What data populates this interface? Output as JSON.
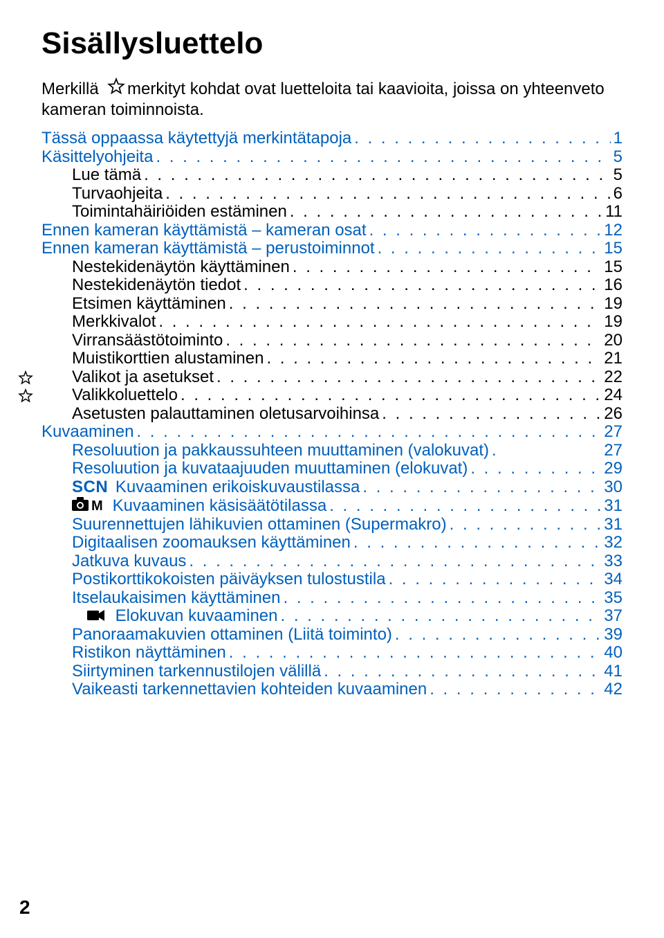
{
  "title": "Sisällysluettelo",
  "intro_before_star": "Merkillä",
  "intro_after_star": "merkityt kohdat ovat luetteloita tai kaavioita, joissa on yhteenveto kameran toiminnoista.",
  "page_corner": "2",
  "colors": {
    "link_blue": "#0060bc",
    "text_black": "#000000"
  },
  "toc": [
    {
      "label": "Tässä oppaassa käytettyjä merkintätapoja",
      "page": "1",
      "level": 0,
      "color": "blue"
    },
    {
      "label": "Käsittelyohjeita",
      "page": "5",
      "level": 0,
      "color": "blue"
    },
    {
      "label": "Lue tämä",
      "page": "5",
      "level": 1,
      "color": "black"
    },
    {
      "label": "Turvaohjeita",
      "page": "6",
      "level": 1,
      "color": "black"
    },
    {
      "label": "Toimintahäiriöiden estäminen",
      "page": "11",
      "level": 1,
      "color": "black"
    },
    {
      "label": "Ennen kameran käyttämistä – kameran osat",
      "page": "12",
      "level": 0,
      "color": "blue"
    },
    {
      "label": "Ennen kameran käyttämistä – perustoiminnot",
      "page": "15",
      "level": 0,
      "color": "blue"
    },
    {
      "label": "Nestekidenäytön käyttäminen",
      "page": "15",
      "level": 1,
      "color": "black"
    },
    {
      "label": "Nestekidenäytön tiedot",
      "page": "16",
      "level": 1,
      "color": "black"
    },
    {
      "label": "Etsimen käyttäminen",
      "page": "19",
      "level": 1,
      "color": "black"
    },
    {
      "label": "Merkkivalot",
      "page": "19",
      "level": 1,
      "color": "black"
    },
    {
      "label": "Virransäästötoiminto",
      "page": "20",
      "level": 1,
      "color": "black"
    },
    {
      "label": "Muistikorttien alustaminen",
      "page": "21",
      "level": 1,
      "color": "black"
    },
    {
      "label": "Valikot ja asetukset",
      "page": "22",
      "level": 1,
      "color": "black",
      "star": true
    },
    {
      "label": "Valikkoluettelo",
      "page": "24",
      "level": 1,
      "color": "black",
      "star": true
    },
    {
      "label": "Asetusten palauttaminen oletusarvoihinsa",
      "page": "26",
      "level": 1,
      "color": "black"
    },
    {
      "label": "Kuvaaminen",
      "page": "27",
      "level": 0,
      "color": "blue"
    },
    {
      "label": "Resoluution ja pakkaussuhteen muuttaminen (valokuvat)",
      "page": "27",
      "level": 1,
      "color": "blue",
      "tightdots": true
    },
    {
      "label": "Resoluution ja kuvataajuuden muuttaminen (elokuvat)",
      "page": "29",
      "level": 1,
      "color": "blue"
    },
    {
      "label": "Kuvaaminen erikoiskuvaustilassa",
      "page": "30",
      "level": 1,
      "color": "blue",
      "prefix": "scn"
    },
    {
      "label": "Kuvaaminen käsisäätötilassa",
      "page": "31",
      "level": 1,
      "color": "blue",
      "prefix": "cam"
    },
    {
      "label": "Suurennettujen lähikuvien ottaminen (Supermakro)",
      "page": "31",
      "level": 1,
      "color": "blue"
    },
    {
      "label": "Digitaalisen zoomauksen käyttäminen",
      "page": "32",
      "level": 1,
      "color": "blue"
    },
    {
      "label": "Jatkuva kuvaus",
      "page": "33",
      "level": 1,
      "color": "blue"
    },
    {
      "label": "Postikorttikokoisten päiväyksen tulostustila",
      "page": "34",
      "level": 1,
      "color": "blue"
    },
    {
      "label": "Itselaukaisimen käyttäminen",
      "page": "35",
      "level": 1,
      "color": "blue"
    },
    {
      "label": "Elokuvan kuvaaminen",
      "page": "37",
      "level": 1,
      "color": "blue",
      "prefix": "movie",
      "extraIndent": true
    },
    {
      "label": "Panoraamakuvien ottaminen (Liitä toiminto)",
      "page": "39",
      "level": 1,
      "color": "blue"
    },
    {
      "label": "Ristikon näyttäminen",
      "page": "40",
      "level": 1,
      "color": "blue"
    },
    {
      "label": "Siirtyminen tarkennustilojen välillä",
      "page": "41",
      "level": 1,
      "color": "blue"
    },
    {
      "label": "Vaikeasti tarkennettavien kohteiden kuvaaminen",
      "page": "42",
      "level": 1,
      "color": "blue"
    }
  ]
}
